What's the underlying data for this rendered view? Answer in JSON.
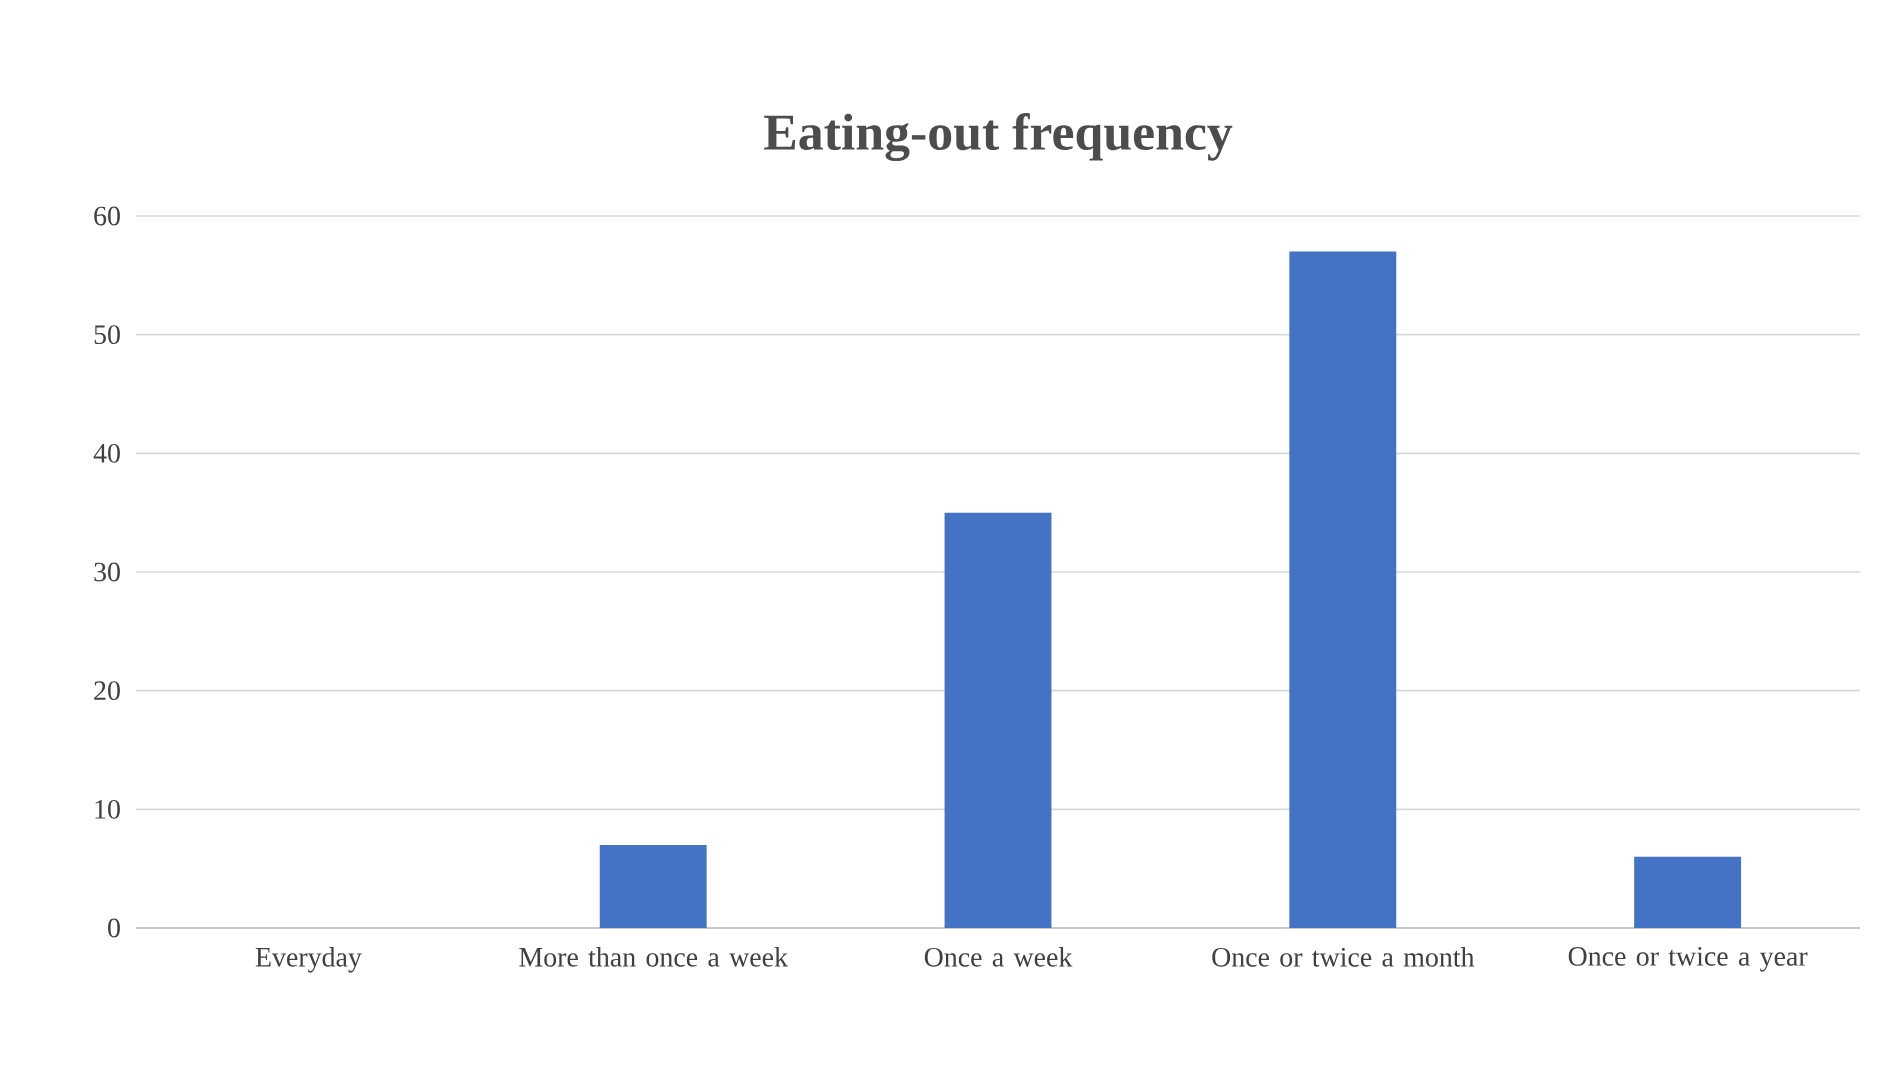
{
  "chart_data": {
    "type": "bar",
    "title": "Eating-out frequency",
    "categories": [
      "Everyday",
      "More than once a week",
      "Once a week",
      "Once or twice a month",
      "Once or twice a year"
    ],
    "values": [
      0,
      7,
      35,
      57,
      6
    ],
    "color": "#4472c4",
    "ylim": [
      0,
      60
    ],
    "yticks": [
      0,
      10,
      20,
      30,
      40,
      50,
      60
    ],
    "grid": "y"
  }
}
